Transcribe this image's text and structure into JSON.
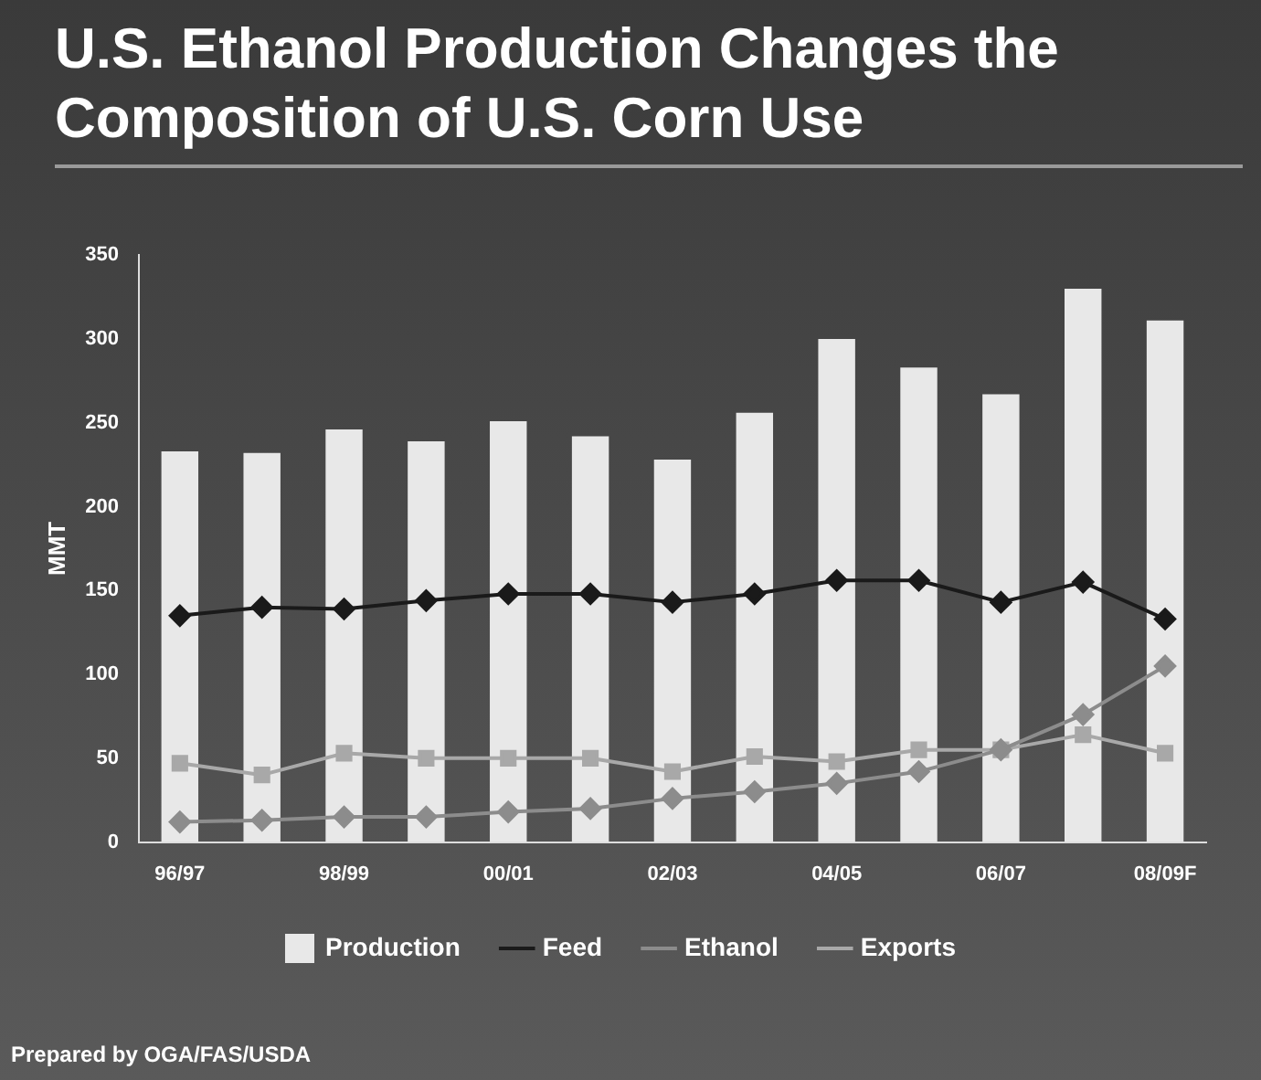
{
  "chart_data": {
    "type": "bar",
    "title": "U.S. Ethanol Production Changes the Composition of U.S. Corn Use",
    "ylabel": "MMT",
    "annotations": [
      "Prepared by OGA/FAS/USDA"
    ],
    "categories": [
      "96/97",
      null,
      "98/99",
      null,
      "00/01",
      null,
      "02/03",
      null,
      "04/05",
      null,
      "06/07",
      null,
      "08/09F"
    ],
    "series": [
      {
        "name": "Production",
        "color": "#e8e8e8",
        "values": [
          233,
          232,
          246,
          239,
          251,
          242,
          228,
          256,
          300,
          283,
          267,
          330,
          311
        ]
      },
      {
        "name": "Feed",
        "type": "line",
        "color": "#1a1a1a",
        "marker": "diamond",
        "values": [
          135,
          140,
          139,
          144,
          148,
          148,
          143,
          148,
          156,
          156,
          143,
          155,
          133
        ]
      },
      {
        "name": "Ethanol",
        "type": "line",
        "color": "#8c8c8c",
        "marker": "diamond",
        "values": [
          12,
          13,
          15,
          15,
          18,
          20,
          26,
          30,
          35,
          42,
          55,
          76,
          105
        ]
      },
      {
        "name": "Exports",
        "type": "line",
        "color": "#a8a8a8",
        "marker": "square",
        "values": [
          47,
          40,
          53,
          50,
          50,
          50,
          42,
          51,
          48,
          55,
          55,
          64,
          53
        ]
      }
    ],
    "ylim": [
      0,
      350
    ],
    "yticks": [
      0,
      50,
      100,
      150,
      200,
      250,
      300,
      350
    ],
    "grid": false,
    "legend": "bottom"
  }
}
